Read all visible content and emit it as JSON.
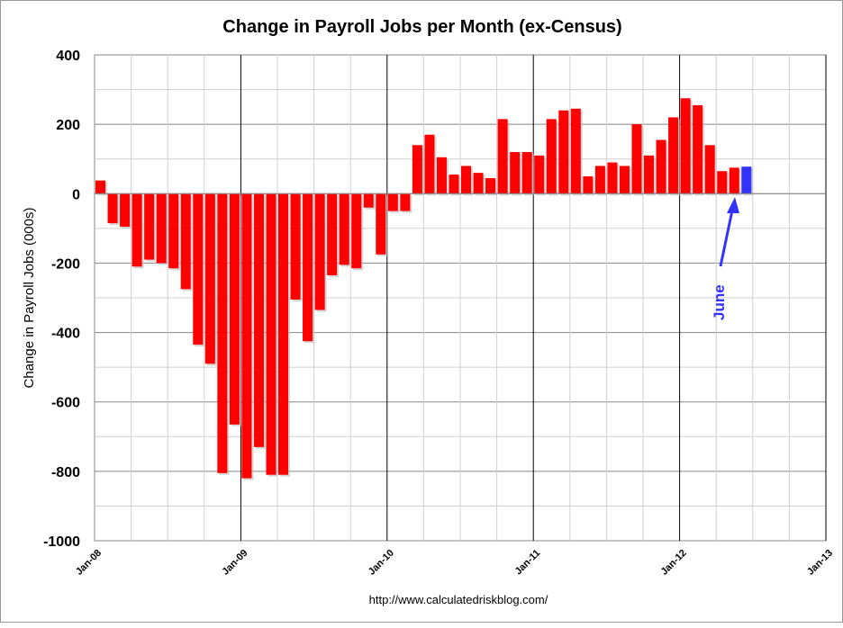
{
  "chart_data": {
    "type": "bar",
    "title": "Change in Payroll Jobs per Month (ex-Census)",
    "xlabel": "",
    "ylabel": "Change in Payroll Jobs (000s)",
    "ylim": [
      -1000,
      400
    ],
    "yticks": [
      400,
      200,
      0,
      -200,
      -400,
      -600,
      -800,
      -1000
    ],
    "xtick_labels": [
      "Jan-08",
      "Jan-09",
      "Jan-10",
      "Jan-11",
      "Jan-12",
      "Jan-13"
    ],
    "grid": true,
    "start_month": "Jan-08",
    "series": [
      {
        "name": "Change in Payroll Jobs",
        "color": "#ff0000",
        "highlight_color": "#3333ff",
        "highlight_index": 53,
        "values": [
          38,
          -85,
          -95,
          -210,
          -190,
          -200,
          -215,
          -275,
          -435,
          -490,
          -805,
          -665,
          -820,
          -730,
          -810,
          -810,
          -305,
          -425,
          -335,
          -235,
          -205,
          -215,
          -40,
          -175,
          -50,
          -50,
          140,
          170,
          105,
          55,
          80,
          60,
          45,
          215,
          120,
          120,
          110,
          215,
          240,
          245,
          50,
          80,
          90,
          80,
          200,
          110,
          155,
          220,
          275,
          255,
          140,
          65,
          75,
          78
        ]
      }
    ],
    "annotation": {
      "text": "June",
      "color": "#3333ff"
    },
    "source": "http://www.calculatedriskblog.com/"
  }
}
